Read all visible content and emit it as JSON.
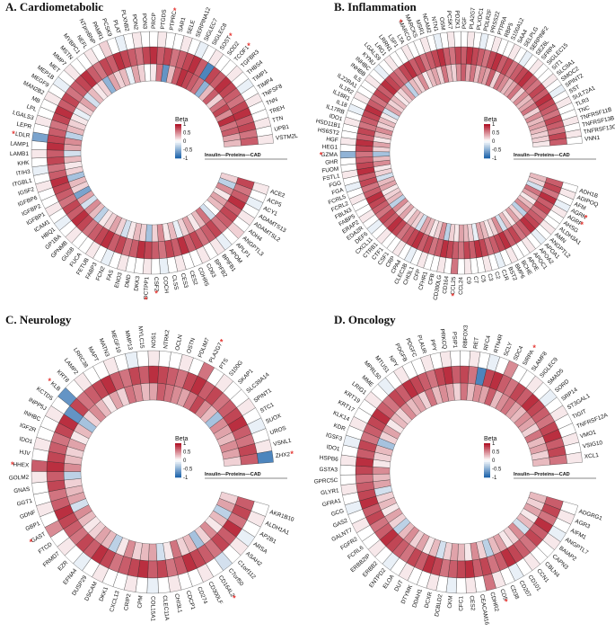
{
  "figure": {
    "legend": {
      "title": "Beta",
      "ticks": [
        "1",
        "0.5",
        "0",
        "-0.5",
        "-1"
      ]
    },
    "ring_label": "Insulin—Proteins—CAD",
    "colors": {
      "pos": "#b2182b",
      "neg": "#2166ac",
      "mid": "#ffffff",
      "na": "#bdbdbd",
      "star": "#e53935"
    }
  },
  "chart_data": [
    {
      "type": "heatmap",
      "title": "A. Cardiometabolic",
      "rings": [
        "Insulin",
        "Proteins",
        "CAD"
      ],
      "genes": [
        "ACE2",
        "ACP5",
        "ACY1",
        "ADAMTS13",
        "ADAMTSL2",
        "ADH4",
        "ANGPTL3",
        "APLP1",
        "APOM",
        "BPIFB1",
        "BPIFB2",
        "CD63",
        "CDHR5",
        "CES2",
        "CES3",
        "CLSS",
        "COCH",
        "CSF2",
        "DCTPP1",
        "DKK3",
        "DMD",
        "ENO3",
        "FAS",
        "FCN2",
        "FABP3",
        "FETUB",
        "FUCA",
        "GUSB",
        "GPNMB",
        "GP1BA",
        "HBQ1",
        "ICAM1",
        "IGFBP1",
        "IGFBP2",
        "IGFBP6",
        "IGSF2",
        "ITGBL1",
        "ITIH3",
        "KHK",
        "LAMB1",
        "LAMP1",
        "LDLR",
        "LEPR",
        "LGALS3",
        "LPL",
        "MB",
        "MAN2B2",
        "MEGF9",
        "MEP1B",
        "MET",
        "MMP7",
        "MSTN",
        "MYBPC1",
        "NEFL",
        "NTproBNP",
        "PAMR1",
        "PCSK9",
        "PLAT",
        "PLXNB2",
        "PON2",
        "PON3",
        "PRCP",
        "PTGDS",
        "PTPRC",
        "SAR1",
        "SELE",
        "SERPINA12",
        "SIGLEC7",
        "SIGLEC8",
        "SOST",
        "SOD2",
        "TCOF1",
        "TGFBR3",
        "THBS4",
        "TIMP1",
        "TIMP4",
        "TNFSF8",
        "TNN",
        "TREH",
        "TTN",
        "UPB1",
        "VSTM2L"
      ],
      "insulin": [
        0.2,
        -0.3,
        0.5,
        0.1,
        0.4,
        0.3,
        0.0,
        -0.2,
        0.6,
        0.3,
        0.1,
        0.4,
        0.2,
        -0.1,
        0.3,
        0.1,
        0.5,
        0.2,
        -0.4,
        0.2,
        0.3,
        0.1,
        -0.2,
        0.2,
        0.4,
        0.2,
        0.1,
        -0.3,
        0.3,
        0.5,
        -0.2,
        0.4,
        -0.6,
        0.2,
        0.3,
        -0.4,
        0.2,
        0.1,
        0.3,
        -0.2,
        0.4,
        0.5,
        -0.3,
        0.3,
        0.2,
        0.1,
        -0.1,
        0.2,
        0.4,
        -0.2,
        0.3,
        0.1,
        0.2,
        -0.5,
        0.4,
        0.2,
        0.3,
        -0.1,
        0.4,
        0.2,
        0.0,
        0.1,
        0.6,
        -0.7,
        0.3,
        0.7,
        0.9,
        0.8,
        0.7,
        0.6,
        -0.5,
        0.3,
        0.7,
        0.2,
        0.6,
        0.8,
        0.5,
        0.9,
        0.6,
        0.7,
        0.4,
        0.3
      ],
      "proteins": [
        0.8,
        0.6,
        0.7,
        0.9,
        0.7,
        0.8,
        0.7,
        0.6,
        0.8,
        0.7,
        0.6,
        0.8,
        0.7,
        0.9,
        0.7,
        0.8,
        0.6,
        0.7,
        0.8,
        0.9,
        0.7,
        0.6,
        0.8,
        0.7,
        0.9,
        0.8,
        0.7,
        0.6,
        0.8,
        0.9,
        0.7,
        0.8,
        0.6,
        0.7,
        0.8,
        0.9,
        0.7,
        0.6,
        0.8,
        0.7,
        0.9,
        0.8,
        0.7,
        0.6,
        0.8,
        0.9,
        0.7,
        0.8,
        0.6,
        0.7,
        0.8,
        0.9,
        0.7,
        0.6,
        0.8,
        0.7,
        0.9,
        0.8,
        0.7,
        0.6,
        0.8,
        0.9,
        0.7,
        0.8,
        0.6,
        0.7,
        0.8,
        0.9,
        0.7,
        -0.8,
        0.8,
        0.7,
        0.9,
        0.8,
        0.7,
        0.6,
        0.8,
        0.9,
        0.7,
        0.8,
        0.6,
        0.7
      ],
      "cad": [
        0.1,
        0.0,
        -0.1,
        0.0,
        0.1,
        0.0,
        0.2,
        0.0,
        -0.1,
        0.1,
        0.0,
        0.1,
        0.0,
        0.0,
        0.1,
        0.0,
        -0.1,
        0.0,
        0.1,
        0.0,
        0.0,
        0.1,
        0.0,
        -0.1,
        0.0,
        0.1,
        0.0,
        0.0,
        0.1,
        0.0,
        -0.1,
        0.0,
        0.1,
        0.0,
        0.0,
        0.1,
        0.0,
        -0.1,
        0.0,
        0.1,
        0.0,
        -0.6,
        0.0,
        0.1,
        0.0,
        0.0,
        0.1,
        0.0,
        -0.1,
        0.0,
        0.1,
        0.0,
        0.0,
        0.1,
        0.0,
        0.2,
        0.0,
        -0.1,
        0.0,
        0.1,
        0.0,
        0.0,
        0.1,
        0.0,
        0.0,
        0.1,
        0.0,
        -0.1,
        0.0,
        0.1,
        0.0,
        0.0,
        0.1,
        0.0,
        -0.1,
        0.0,
        0.1,
        0.0,
        0.0,
        0.1,
        0.0,
        0.1
      ],
      "starred": [
        "CSF2",
        "DCTPP1",
        "LDLR",
        "PTPRC",
        "TCOF1",
        "SOST"
      ]
    },
    {
      "type": "heatmap",
      "title": "B. Inflammation",
      "rings": [
        "Insulin",
        "Proteins",
        "CAD"
      ],
      "genes": [
        "ADH1B",
        "ADIPOQ",
        "AFM",
        "AGRN",
        "AGRP",
        "AHSG",
        "ALDH3A1",
        "AMN",
        "ANGPTL2",
        "APOA1",
        "APOA2",
        "APOC1",
        "APOE",
        "BCHE",
        "BMP6",
        "BST2",
        "C1R",
        "C2",
        "C3",
        "C5",
        "C7",
        "C9",
        "CCL24",
        "CCL25",
        "CD164",
        "CD300LG",
        "CFB",
        "CFHR1",
        "CFP",
        "CHI3L1",
        "CLEC3B",
        "CPA4",
        "CRP",
        "CSF1",
        "CTF1",
        "CTRB1",
        "CXCL11",
        "DEF6",
        "EDA2R",
        "ERAP2",
        "FABP5",
        "FBLN3",
        "FCRL2",
        "FCRL5",
        "FGA",
        "FGG",
        "FSTL1",
        "FUOM",
        "GHR",
        "GZMA",
        "HEG1",
        "HGF",
        "HS6ST2",
        "HSD11B1",
        "IDO1",
        "IL17RB",
        "IL18",
        "IL18R1",
        "IL1R2",
        "IL22RA1",
        "IL5",
        "INHBB",
        "INHBC",
        "KYNU",
        "LGALS9",
        "LRG1",
        "LRRN1",
        "LSP1",
        "LTA",
        "MARCO",
        "MARCKS",
        "MSR1",
        "NCAM2",
        "NTN1",
        "OSM",
        "PCSK7",
        "PDZK1",
        "PGF",
        "PLA2G7",
        "PLXDC1",
        "POLR2F",
        "PRSS22",
        "PTPRA",
        "RBP5",
        "S100A12",
        "SAA4",
        "SELPLG",
        "SERPINF2",
        "SEZ6L",
        "SFRP4",
        "SIGLEC15",
        "SIT1",
        "SLC9A1",
        "SMOC2",
        "SPINT2",
        "SST",
        "SULT2A1",
        "TLR3",
        "TNC",
        "TNFRSF11B",
        "TNFRSF13B",
        "TNFRSF13C",
        "VNN1"
      ],
      "insulin": [
        0.3,
        0.2,
        -0.2,
        0.6,
        0.4,
        0.1,
        0.3,
        0.5,
        -0.3,
        0.2,
        0.4,
        0.1,
        0.3,
        -0.2,
        0.5,
        0.2,
        0.1,
        0.3,
        0.4,
        -0.1,
        0.2,
        0.3,
        0.4,
        0.1,
        0.2,
        -0.3,
        0.5,
        0.2,
        0.1,
        0.3,
        0.4,
        -0.2,
        0.2,
        0.3,
        0.1,
        0.4,
        0.2,
        0.5,
        -0.3,
        0.3,
        0.2,
        0.1,
        0.4,
        0.3,
        -0.2,
        0.2,
        0.1,
        0.5,
        0.3,
        -0.4,
        0.2,
        0.4,
        0.1,
        0.3,
        0.5,
        0.2,
        0.3,
        0.1,
        -0.2,
        0.4,
        0.2,
        0.3,
        0.1,
        0.2,
        0.4,
        -0.3,
        0.3,
        0.2,
        0.5,
        0.1,
        0.3,
        0.4,
        0.2,
        0.6,
        0.3,
        0.2,
        0.5,
        0.7,
        0.4,
        0.6,
        0.3,
        0.5,
        0.4,
        0.7,
        0.2,
        0.6,
        0.5,
        0.3,
        0.4,
        0.6,
        0.2,
        0.5,
        0.3,
        0.4,
        0.6,
        0.2,
        0.5,
        0.3,
        0.4,
        0.3,
        0.2,
        0.2,
        0.1
      ],
      "proteins": [
        0.7,
        0.8,
        0.6,
        0.9,
        0.7,
        0.8,
        0.6,
        0.7,
        0.8,
        0.9,
        0.7,
        0.6,
        0.8,
        0.7,
        0.9,
        0.8,
        0.7,
        0.6,
        0.8,
        0.9,
        0.7,
        0.8,
        0.6,
        0.7,
        0.8,
        0.9,
        0.7,
        0.6,
        0.8,
        0.7,
        0.9,
        0.8,
        0.7,
        0.6,
        0.8,
        0.9,
        0.7,
        0.8,
        0.6,
        0.7,
        0.8,
        0.9,
        0.7,
        0.6,
        0.8,
        0.7,
        0.9,
        0.8,
        0.7,
        0.6,
        0.8,
        0.9,
        0.7,
        0.8,
        0.6,
        0.7,
        0.8,
        0.9,
        0.7,
        0.6,
        0.8,
        0.7,
        0.9,
        0.8,
        0.7,
        0.6,
        0.8,
        0.9,
        0.7,
        0.8,
        0.6,
        0.7,
        0.8,
        0.9,
        0.7,
        0.6,
        0.8,
        0.7,
        0.9,
        0.8,
        0.7,
        0.6,
        0.8,
        0.9,
        0.7,
        0.8,
        0.6,
        0.7,
        0.8,
        0.9,
        0.7,
        0.6,
        0.8,
        0.7,
        0.9,
        0.8,
        0.7,
        0.6,
        0.8,
        0.7,
        0.6,
        0.8,
        0.7
      ],
      "cad": [
        0.0,
        0.1,
        0.0,
        -0.1,
        0.1,
        0.0,
        0.0,
        0.1,
        0.0,
        -0.1,
        0.0,
        0.1,
        0.0,
        0.0,
        0.1,
        0.0,
        -0.1,
        0.0,
        0.1,
        0.0,
        0.0,
        0.1,
        0.0,
        0.6,
        0.0,
        0.1,
        0.0,
        0.0,
        0.1,
        0.0,
        -0.1,
        0.0,
        0.1,
        0.0,
        0.0,
        0.1,
        0.0,
        -0.1,
        0.0,
        0.1,
        0.0,
        0.0,
        0.1,
        0.0,
        -0.1,
        0.0,
        0.1,
        0.0,
        0.0,
        -0.5,
        0.0,
        0.1,
        0.0,
        0.0,
        0.1,
        0.0,
        -0.1,
        0.0,
        0.1,
        0.0,
        0.0,
        0.1,
        0.0,
        -0.1,
        0.0,
        0.1,
        0.0,
        0.0,
        0.1,
        0.0,
        0.0,
        0.1,
        0.0,
        -0.1,
        0.0,
        0.1,
        0.0,
        0.0,
        0.1,
        0.0,
        -0.1,
        0.0,
        0.1,
        0.0,
        0.0,
        0.1,
        0.0,
        -0.1,
        0.0,
        0.1,
        0.0,
        0.0,
        0.1,
        0.0,
        -0.1,
        0.0,
        0.1,
        0.0,
        0.0,
        0.1,
        0.0,
        0.1,
        0.0
      ],
      "starred": [
        "AGRN",
        "AGRP",
        "GZMA",
        "CCL25",
        "MARCO"
      ]
    },
    {
      "type": "heatmap",
      "title": "C. Neurology",
      "rings": [
        "Insulin",
        "Proteins",
        "CAD"
      ],
      "genes": [
        "AKR1B10",
        "ALDH1A1",
        "AP2B1",
        "ARSA",
        "ASAH2",
        "C1orf112",
        "C7orf50",
        "CD164L2",
        "CD300LF",
        "CD274",
        "CDCP1",
        "CHI3L1",
        "CLEC11A",
        "COL15A1",
        "CPM",
        "CRIP2",
        "CXCL13",
        "DKK1",
        "DSCAM",
        "DUSP29",
        "EFNA4",
        "EZR",
        "FRMD7",
        "FTCD",
        "GAST",
        "GBP1",
        "GDNF",
        "GGT1",
        "GNAS",
        "GOLM2",
        "HHEX",
        "HJV",
        "IDO1",
        "IGF2R",
        "INHBC",
        "INPP5J",
        "KCTD5",
        "KLB",
        "KRT8",
        "LAMP2",
        "LRRC38",
        "MAPT",
        "MATN3",
        "MEGF10",
        "MMP13",
        "MYLC15",
        "NOS1",
        "NTRK2",
        "OCLN",
        "OSTN",
        "PDLIM7",
        "PLA2G7",
        "PTS",
        "S100G",
        "SKAP1",
        "SLC39A14",
        "SPINT1",
        "STC1",
        "SUOX",
        "UROS",
        "VSNL1",
        "ZHX2"
      ],
      "insulin": [
        0.2,
        0.4,
        -0.3,
        0.3,
        0.1,
        0.5,
        0.2,
        -0.4,
        0.3,
        0.2,
        0.6,
        0.1,
        -0.2,
        0.4,
        0.3,
        0.2,
        0.5,
        0.1,
        -0.3,
        0.3,
        0.4,
        0.2,
        0.1,
        0.3,
        0.5,
        -0.2,
        0.4,
        0.3,
        0.2,
        -0.3,
        0.5,
        0.3,
        0.2,
        0.4,
        0.1,
        0.3,
        -0.4,
        0.2,
        0.5,
        0.3,
        0.1,
        0.4,
        0.2,
        0.6,
        0.5,
        0.3,
        0.4,
        0.7,
        0.6,
        0.5,
        0.4,
        0.6,
        0.8,
        0.5,
        0.3,
        -0.4,
        0.5,
        0.4,
        0.3,
        0.5,
        0.4,
        0.2
      ],
      "proteins": [
        0.7,
        0.8,
        0.6,
        0.9,
        0.7,
        0.8,
        0.6,
        0.7,
        0.8,
        0.9,
        0.7,
        0.6,
        0.8,
        0.7,
        0.9,
        0.8,
        0.7,
        0.6,
        0.8,
        0.9,
        0.7,
        0.8,
        0.6,
        0.7,
        0.8,
        0.9,
        0.7,
        0.6,
        0.8,
        0.7,
        0.9,
        0.8,
        0.7,
        0.6,
        0.8,
        0.9,
        -0.7,
        0.8,
        0.6,
        0.7,
        0.8,
        0.9,
        0.7,
        0.6,
        0.8,
        0.7,
        0.9,
        0.8,
        0.7,
        0.6,
        0.8,
        0.9,
        0.7,
        0.8,
        0.6,
        0.7,
        0.8,
        0.9,
        0.7,
        0.6,
        0.8,
        0.7
      ],
      "cad": [
        0.0,
        0.1,
        0.0,
        -0.1,
        0.1,
        0.0,
        -0.2,
        0.0,
        0.1,
        0.0,
        0.0,
        0.1,
        0.0,
        -0.1,
        0.0,
        0.1,
        0.0,
        0.0,
        0.1,
        0.0,
        -0.1,
        0.0,
        0.1,
        0.0,
        0.5,
        0.0,
        0.1,
        0.0,
        0.0,
        0.1,
        0.7,
        0.0,
        0.1,
        0.0,
        0.0,
        0.1,
        0.0,
        -0.7,
        0.0,
        0.1,
        0.0,
        0.0,
        0.1,
        0.0,
        -0.1,
        0.0,
        0.1,
        0.0,
        0.0,
        0.1,
        0.0,
        0.6,
        0.0,
        0.1,
        0.0,
        0.0,
        0.1,
        0.0,
        -0.1,
        0.0,
        0.1,
        -0.8
      ],
      "starred": [
        "CD164L2",
        "GAST",
        "HHEX",
        "KLB",
        "PLA2G7",
        "ZHX2"
      ]
    },
    {
      "type": "heatmap",
      "title": "D. Oncology",
      "rings": [
        "Insulin",
        "Proteins",
        "CAD"
      ],
      "genes": [
        "ADGRG1",
        "AGR3",
        "AIFM1",
        "ANGPTL7",
        "BAIAP2",
        "CAPN3",
        "CBLN4",
        "CCN1",
        "CD101",
        "CD207",
        "CD38",
        "CD5",
        "CDHR2",
        "CEACAM16",
        "CES2",
        "CFC1",
        "CKM",
        "DCBLD2",
        "DCXR",
        "DDAH1",
        "DTYMK",
        "DUT",
        "ELOA",
        "ENTPD2",
        "ERBB2",
        "ERBB2IP",
        "FCRL6",
        "FGFR2",
        "GALNT7",
        "GAS2",
        "GCG",
        "GFRA1",
        "GLYR1",
        "GPRC5C",
        "GSTA3",
        "HSPB6",
        "IDO1",
        "IGSF3",
        "KDR",
        "KLK14",
        "KRT17",
        "KRT19",
        "LRIG1",
        "MME",
        "MPRL50",
        "MTUS1",
        "NPY",
        "PDGFB",
        "PDGFC",
        "PLAUR",
        "PPY",
        "PRKCQ",
        "PSIP1",
        "RBFOX3",
        "RET",
        "RFC4",
        "RTN4R",
        "SCLY",
        "SDC4",
        "SIRPA",
        "SLAMF8",
        "SIGLEC9",
        "SMAD5",
        "SORD",
        "SRP14",
        "ST3GAL1",
        "TIGIT",
        "TNFRSF12A",
        "VMO1",
        "VSIG10",
        "XCL1"
      ],
      "insulin": [
        0.3,
        0.2,
        0.4,
        0.1,
        0.3,
        -0.2,
        0.5,
        0.2,
        0.1,
        0.4,
        0.3,
        -0.3,
        0.2,
        0.5,
        0.1,
        0.3,
        0.4,
        0.2,
        -0.2,
        0.3,
        0.1,
        0.4,
        0.2,
        0.5,
        0.3,
        -0.3,
        0.2,
        0.4,
        0.1,
        0.3,
        0.2,
        -0.2,
        0.4,
        0.3,
        0.5,
        0.1,
        0.2,
        0.3,
        -0.4,
        0.2,
        0.4,
        0.1,
        0.3,
        0.2,
        0.5,
        0.3,
        0.4,
        0.2,
        0.6,
        0.3,
        0.5,
        0.4,
        0.2,
        0.6,
        0.3,
        0.5,
        0.4,
        0.7,
        0.3,
        0.5,
        0.6,
        0.4,
        0.3,
        0.5,
        0.4,
        0.2,
        0.6,
        0.3,
        0.4,
        0.2,
        0.3
      ],
      "proteins": [
        0.7,
        0.8,
        0.6,
        0.9,
        0.7,
        0.8,
        0.6,
        0.7,
        0.8,
        0.9,
        0.7,
        0.6,
        0.8,
        0.7,
        0.9,
        0.8,
        0.7,
        0.6,
        0.8,
        0.9,
        0.7,
        0.8,
        0.6,
        0.7,
        0.8,
        0.9,
        0.7,
        0.6,
        0.8,
        0.7,
        0.9,
        0.8,
        0.7,
        0.6,
        0.8,
        0.9,
        0.7,
        0.8,
        0.6,
        0.7,
        0.8,
        0.9,
        0.7,
        0.6,
        0.8,
        0.7,
        0.9,
        0.8,
        0.7,
        0.6,
        0.8,
        0.9,
        0.7,
        0.8,
        0.6,
        -0.8,
        0.8,
        0.9,
        0.7,
        0.6,
        0.8,
        0.7,
        0.9,
        0.8,
        0.7,
        0.6,
        0.8,
        0.9,
        0.7,
        0.8,
        0.6
      ],
      "cad": [
        0.0,
        0.1,
        0.0,
        -0.1,
        0.1,
        0.0,
        0.0,
        0.1,
        0.0,
        -0.1,
        0.0,
        0.1,
        0.6,
        0.0,
        0.1,
        0.0,
        -0.1,
        0.0,
        0.1,
        0.0,
        0.0,
        0.1,
        0.0,
        -0.1,
        0.0,
        0.1,
        0.0,
        0.0,
        0.1,
        0.0,
        -0.1,
        0.0,
        0.1,
        0.0,
        0.0,
        0.1,
        0.0,
        -0.1,
        0.0,
        0.1,
        0.0,
        0.0,
        0.1,
        0.0,
        -0.1,
        0.0,
        0.1,
        0.0,
        0.0,
        0.1,
        0.0,
        0.1,
        0.0,
        0.0,
        0.1,
        0.0,
        -0.1,
        0.0,
        0.5,
        0.0,
        0.0,
        0.1,
        0.0,
        -0.1,
        0.0,
        0.1,
        0.0,
        0.0,
        0.1,
        0.0,
        0.1
      ],
      "starred": [
        "CD5",
        "SIRPA"
      ]
    }
  ]
}
